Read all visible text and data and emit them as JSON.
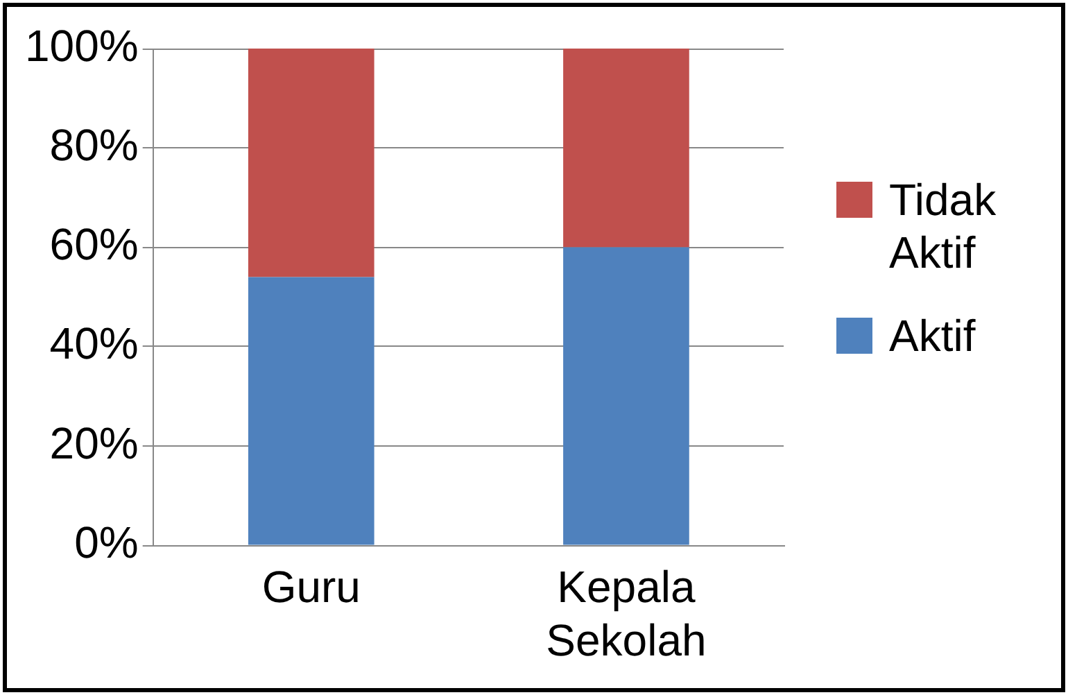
{
  "chart_data": {
    "type": "bar",
    "stacked": true,
    "categories": [
      "Guru",
      "Kepala Sekolah"
    ],
    "series": [
      {
        "name": "Aktif",
        "color": "#4f81bd",
        "values": [
          54,
          60
        ]
      },
      {
        "name": "Tidak Aktif",
        "color": "#c0504d",
        "values": [
          46,
          40
        ]
      }
    ],
    "ylim": [
      0,
      100
    ],
    "yticks": [
      {
        "value": 0,
        "label": "0%"
      },
      {
        "value": 20,
        "label": "20%"
      },
      {
        "value": 40,
        "label": "40%"
      },
      {
        "value": 60,
        "label": "60%"
      },
      {
        "value": 80,
        "label": "80%"
      },
      {
        "value": 100,
        "label": "100%"
      }
    ],
    "grid": "y",
    "legend": "right"
  }
}
